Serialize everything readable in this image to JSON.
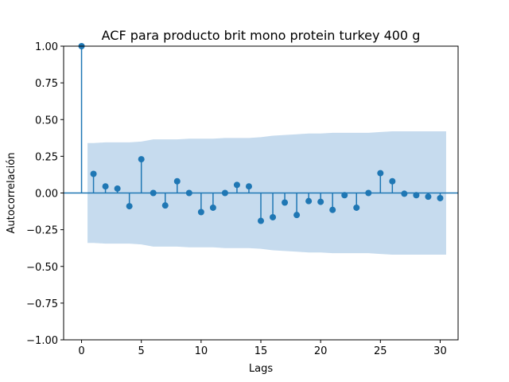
{
  "chart_data": {
    "type": "stem",
    "title": "ACF para producto brit mono protein turkey 400 g",
    "xlabel": "Lags",
    "ylabel": "Autocorrelación",
    "xlim": [
      -1.5,
      31.5
    ],
    "ylim": [
      -1.0,
      1.0
    ],
    "xticks": [
      0,
      5,
      10,
      15,
      20,
      25,
      30
    ],
    "xtick_labels": [
      "0",
      "5",
      "10",
      "15",
      "20",
      "25",
      "30"
    ],
    "yticks": [
      -1.0,
      -0.75,
      -0.5,
      -0.25,
      0.0,
      0.25,
      0.5,
      0.75,
      1.0
    ],
    "ytick_labels": [
      "−1.00",
      "−0.75",
      "−0.50",
      "−0.25",
      "0.00",
      "0.25",
      "0.50",
      "0.75",
      "1.00"
    ],
    "grid": false,
    "lags": [
      0,
      1,
      2,
      3,
      4,
      5,
      6,
      7,
      8,
      9,
      10,
      11,
      12,
      13,
      14,
      15,
      16,
      17,
      18,
      19,
      20,
      21,
      22,
      23,
      24,
      25,
      26,
      27,
      28,
      29,
      30
    ],
    "values": [
      1.0,
      0.13,
      0.045,
      0.03,
      -0.09,
      0.23,
      0.0,
      -0.085,
      0.08,
      0.0,
      -0.13,
      -0.1,
      0.0,
      0.055,
      0.045,
      -0.19,
      -0.165,
      -0.065,
      -0.15,
      -0.055,
      -0.06,
      -0.115,
      -0.015,
      -0.1,
      0.0,
      0.135,
      0.08,
      -0.005,
      -0.015,
      -0.025,
      -0.035
    ],
    "confint_lags": [
      0.5,
      1,
      2,
      3,
      4,
      5,
      6,
      7,
      8,
      9,
      10,
      11,
      12,
      13,
      14,
      15,
      16,
      17,
      18,
      19,
      20,
      21,
      22,
      23,
      24,
      25,
      26,
      27,
      28,
      29,
      30,
      30.5
    ],
    "confint_upper": [
      0.34,
      0.34,
      0.345,
      0.345,
      0.345,
      0.35,
      0.365,
      0.365,
      0.365,
      0.37,
      0.37,
      0.37,
      0.375,
      0.375,
      0.375,
      0.38,
      0.39,
      0.395,
      0.4,
      0.405,
      0.405,
      0.41,
      0.41,
      0.41,
      0.41,
      0.415,
      0.42,
      0.42,
      0.42,
      0.42,
      0.42,
      0.42
    ],
    "colors": {
      "stem": "#1f77b4",
      "band": "#c6dbee",
      "zero_line": "#1f77b4"
    }
  }
}
